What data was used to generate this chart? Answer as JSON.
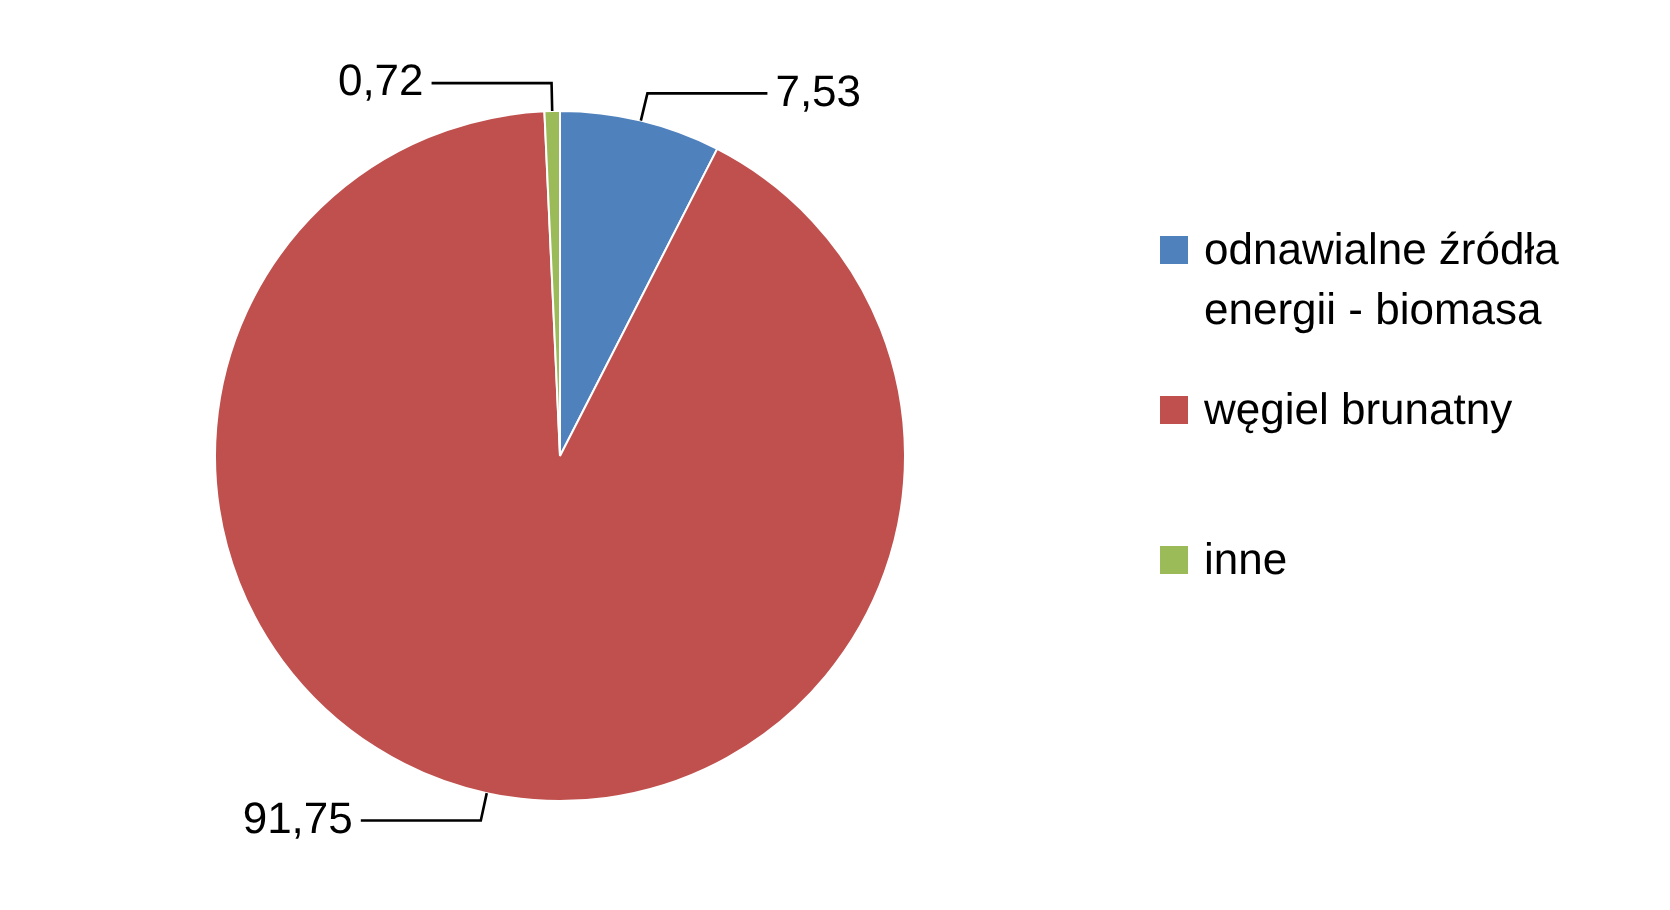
{
  "chart_data": {
    "type": "pie",
    "categories": [
      "odnawialne źródła energii - biomasa",
      "węgiel brunatny",
      "inne"
    ],
    "values": [
      7.53,
      91.75,
      0.72
    ],
    "colors": [
      "#4f81bd",
      "#c0504d",
      "#9bbb59"
    ],
    "value_labels": [
      "7,53",
      "91,75",
      "0,72"
    ],
    "legend": "right"
  }
}
